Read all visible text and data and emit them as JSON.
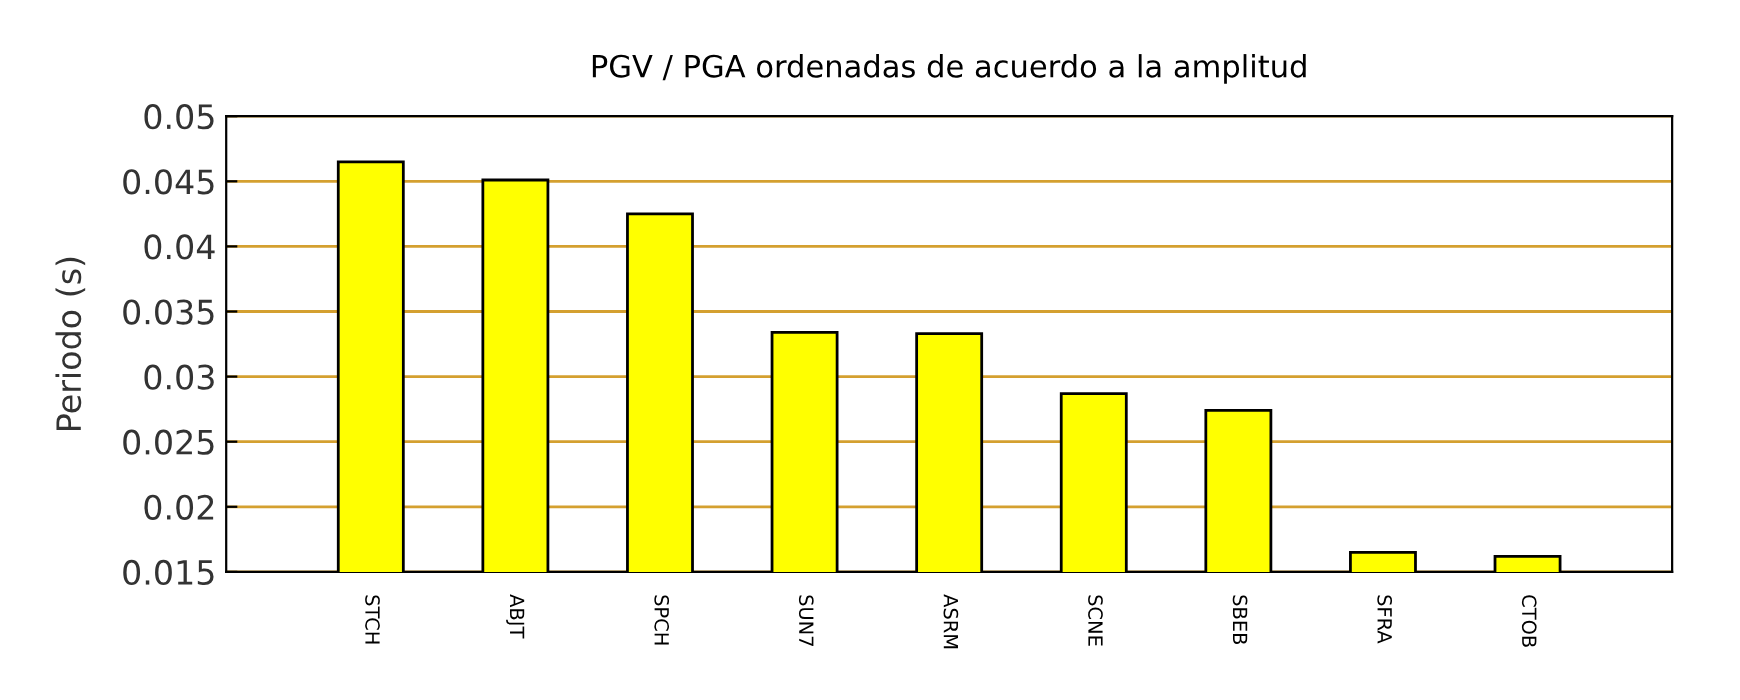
{
  "chart_data": {
    "type": "bar",
    "title": "PGV / PGA ordenadas de acuerdo a la amplitud",
    "ylabel": "Periodo (s)",
    "categories": [
      "STCH",
      "ABJT",
      "SPCH",
      "SUN7",
      "ASRM",
      "SCNE",
      "SBEB",
      "SFRA",
      "CTOB"
    ],
    "values": [
      0.0465,
      0.0451,
      0.0425,
      0.0334,
      0.0333,
      0.0287,
      0.0274,
      0.0165,
      0.0162
    ],
    "color": "#ffff00",
    "ylim": [
      0.015,
      0.05
    ],
    "yticks": [
      0.015,
      0.02,
      0.025,
      0.03,
      0.035,
      0.04,
      0.045,
      0.05
    ],
    "grid": "y"
  }
}
